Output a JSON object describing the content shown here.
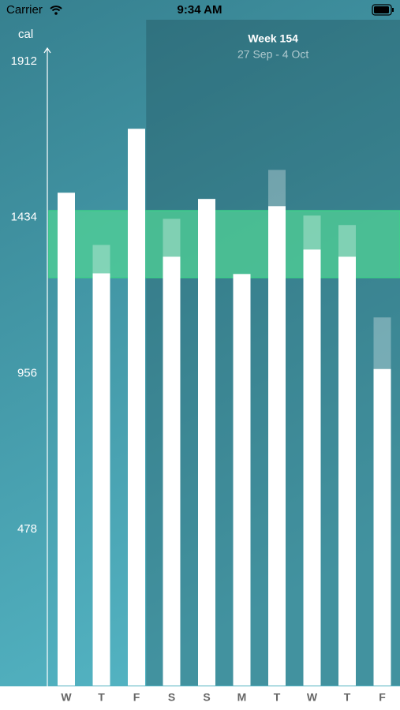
{
  "status_bar": {
    "carrier": "Carrier",
    "time": "9:34 AM"
  },
  "chart_data": {
    "type": "bar",
    "y_label": "cal",
    "highlight": {
      "title": "Week 154",
      "subtitle": "27 Sep - 4 Oct",
      "start_index": 3
    },
    "categories": [
      "W",
      "T",
      "F",
      "S",
      "S",
      "M",
      "T",
      "W",
      "T",
      "F"
    ],
    "series": [
      {
        "color": "#ffffff",
        "values": [
          1510,
          1263,
          1706,
          1314,
          1491,
          1261,
          1469,
          1336,
          1314,
          970
        ]
      },
      {
        "color": "rgba(255,255,255,0.3)",
        "values": [
          null,
          87,
          null,
          116,
          null,
          null,
          111,
          104,
          97,
          158
        ]
      }
    ],
    "target_band": [
      1250,
      1455
    ],
    "target_color": "rgba(80,210,150,0.75)",
    "ylim": [
      0,
      1912
    ],
    "yticks": [
      478,
      956,
      1434,
      1912
    ],
    "grid": false
  }
}
